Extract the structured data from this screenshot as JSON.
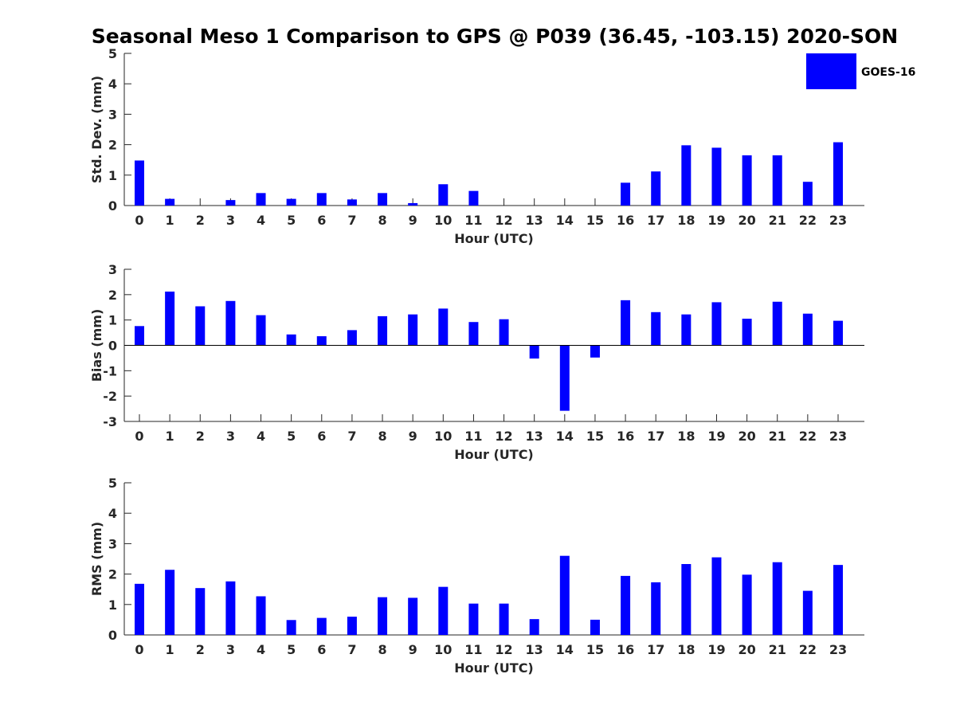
{
  "figure": {
    "title": "Seasonal Meso 1 Comparison to GPS @ P039 (36.45, -103.15) 2020-SON",
    "legend": {
      "label": "GOES-16",
      "color": "#0000ff",
      "placement": "top-right"
    }
  },
  "chart_data": [
    {
      "type": "bar",
      "xlabel": "Hour (UTC)",
      "ylabel": "Std. Dev. (mm)",
      "ylim": [
        0,
        5
      ],
      "yticks": [
        0,
        1,
        2,
        3,
        4,
        5
      ],
      "categories": [
        "0",
        "1",
        "2",
        "3",
        "4",
        "5",
        "6",
        "7",
        "8",
        "9",
        "10",
        "11",
        "12",
        "13",
        "14",
        "15",
        "16",
        "17",
        "18",
        "19",
        "20",
        "21",
        "22",
        "23"
      ],
      "series": [
        {
          "name": "GOES-16",
          "color": "#0000ff",
          "values": [
            1.48,
            0.22,
            0,
            0.18,
            0.41,
            0.22,
            0.41,
            0.2,
            0.41,
            0.08,
            0.7,
            0.48,
            0,
            0,
            0,
            0,
            0.75,
            1.12,
            1.98,
            1.9,
            1.65,
            1.65,
            0.78,
            2.08
          ]
        }
      ]
    },
    {
      "type": "bar",
      "xlabel": "Hour (UTC)",
      "ylabel": "Bias (mm)",
      "ylim": [
        -3,
        3
      ],
      "yticks": [
        -3,
        -2,
        -1,
        0,
        1,
        2,
        3
      ],
      "categories": [
        "0",
        "1",
        "2",
        "3",
        "4",
        "5",
        "6",
        "7",
        "8",
        "9",
        "10",
        "11",
        "12",
        "13",
        "14",
        "15",
        "16",
        "17",
        "18",
        "19",
        "20",
        "21",
        "22",
        "23"
      ],
      "series": [
        {
          "name": "GOES-16",
          "color": "#0000ff",
          "values": [
            0.76,
            2.12,
            1.54,
            1.75,
            1.19,
            0.43,
            0.36,
            0.6,
            1.15,
            1.22,
            1.45,
            0.92,
            1.03,
            -0.52,
            -2.58,
            -0.48,
            1.78,
            1.31,
            1.22,
            1.7,
            1.05,
            1.72,
            1.25,
            0.97
          ]
        }
      ]
    },
    {
      "type": "bar",
      "xlabel": "Hour (UTC)",
      "ylabel": "RMS (mm)",
      "ylim": [
        0,
        5
      ],
      "yticks": [
        0,
        1,
        2,
        3,
        4,
        5
      ],
      "categories": [
        "0",
        "1",
        "2",
        "3",
        "4",
        "5",
        "6",
        "7",
        "8",
        "9",
        "10",
        "11",
        "12",
        "13",
        "14",
        "15",
        "16",
        "17",
        "18",
        "19",
        "20",
        "21",
        "22",
        "23"
      ],
      "series": [
        {
          "name": "GOES-16",
          "color": "#0000ff",
          "values": [
            1.68,
            2.14,
            1.54,
            1.76,
            1.27,
            0.49,
            0.56,
            0.6,
            1.24,
            1.22,
            1.58,
            1.03,
            1.03,
            0.52,
            2.6,
            0.5,
            1.94,
            1.73,
            2.33,
            2.55,
            1.98,
            2.39,
            1.45,
            2.3
          ]
        }
      ]
    }
  ]
}
